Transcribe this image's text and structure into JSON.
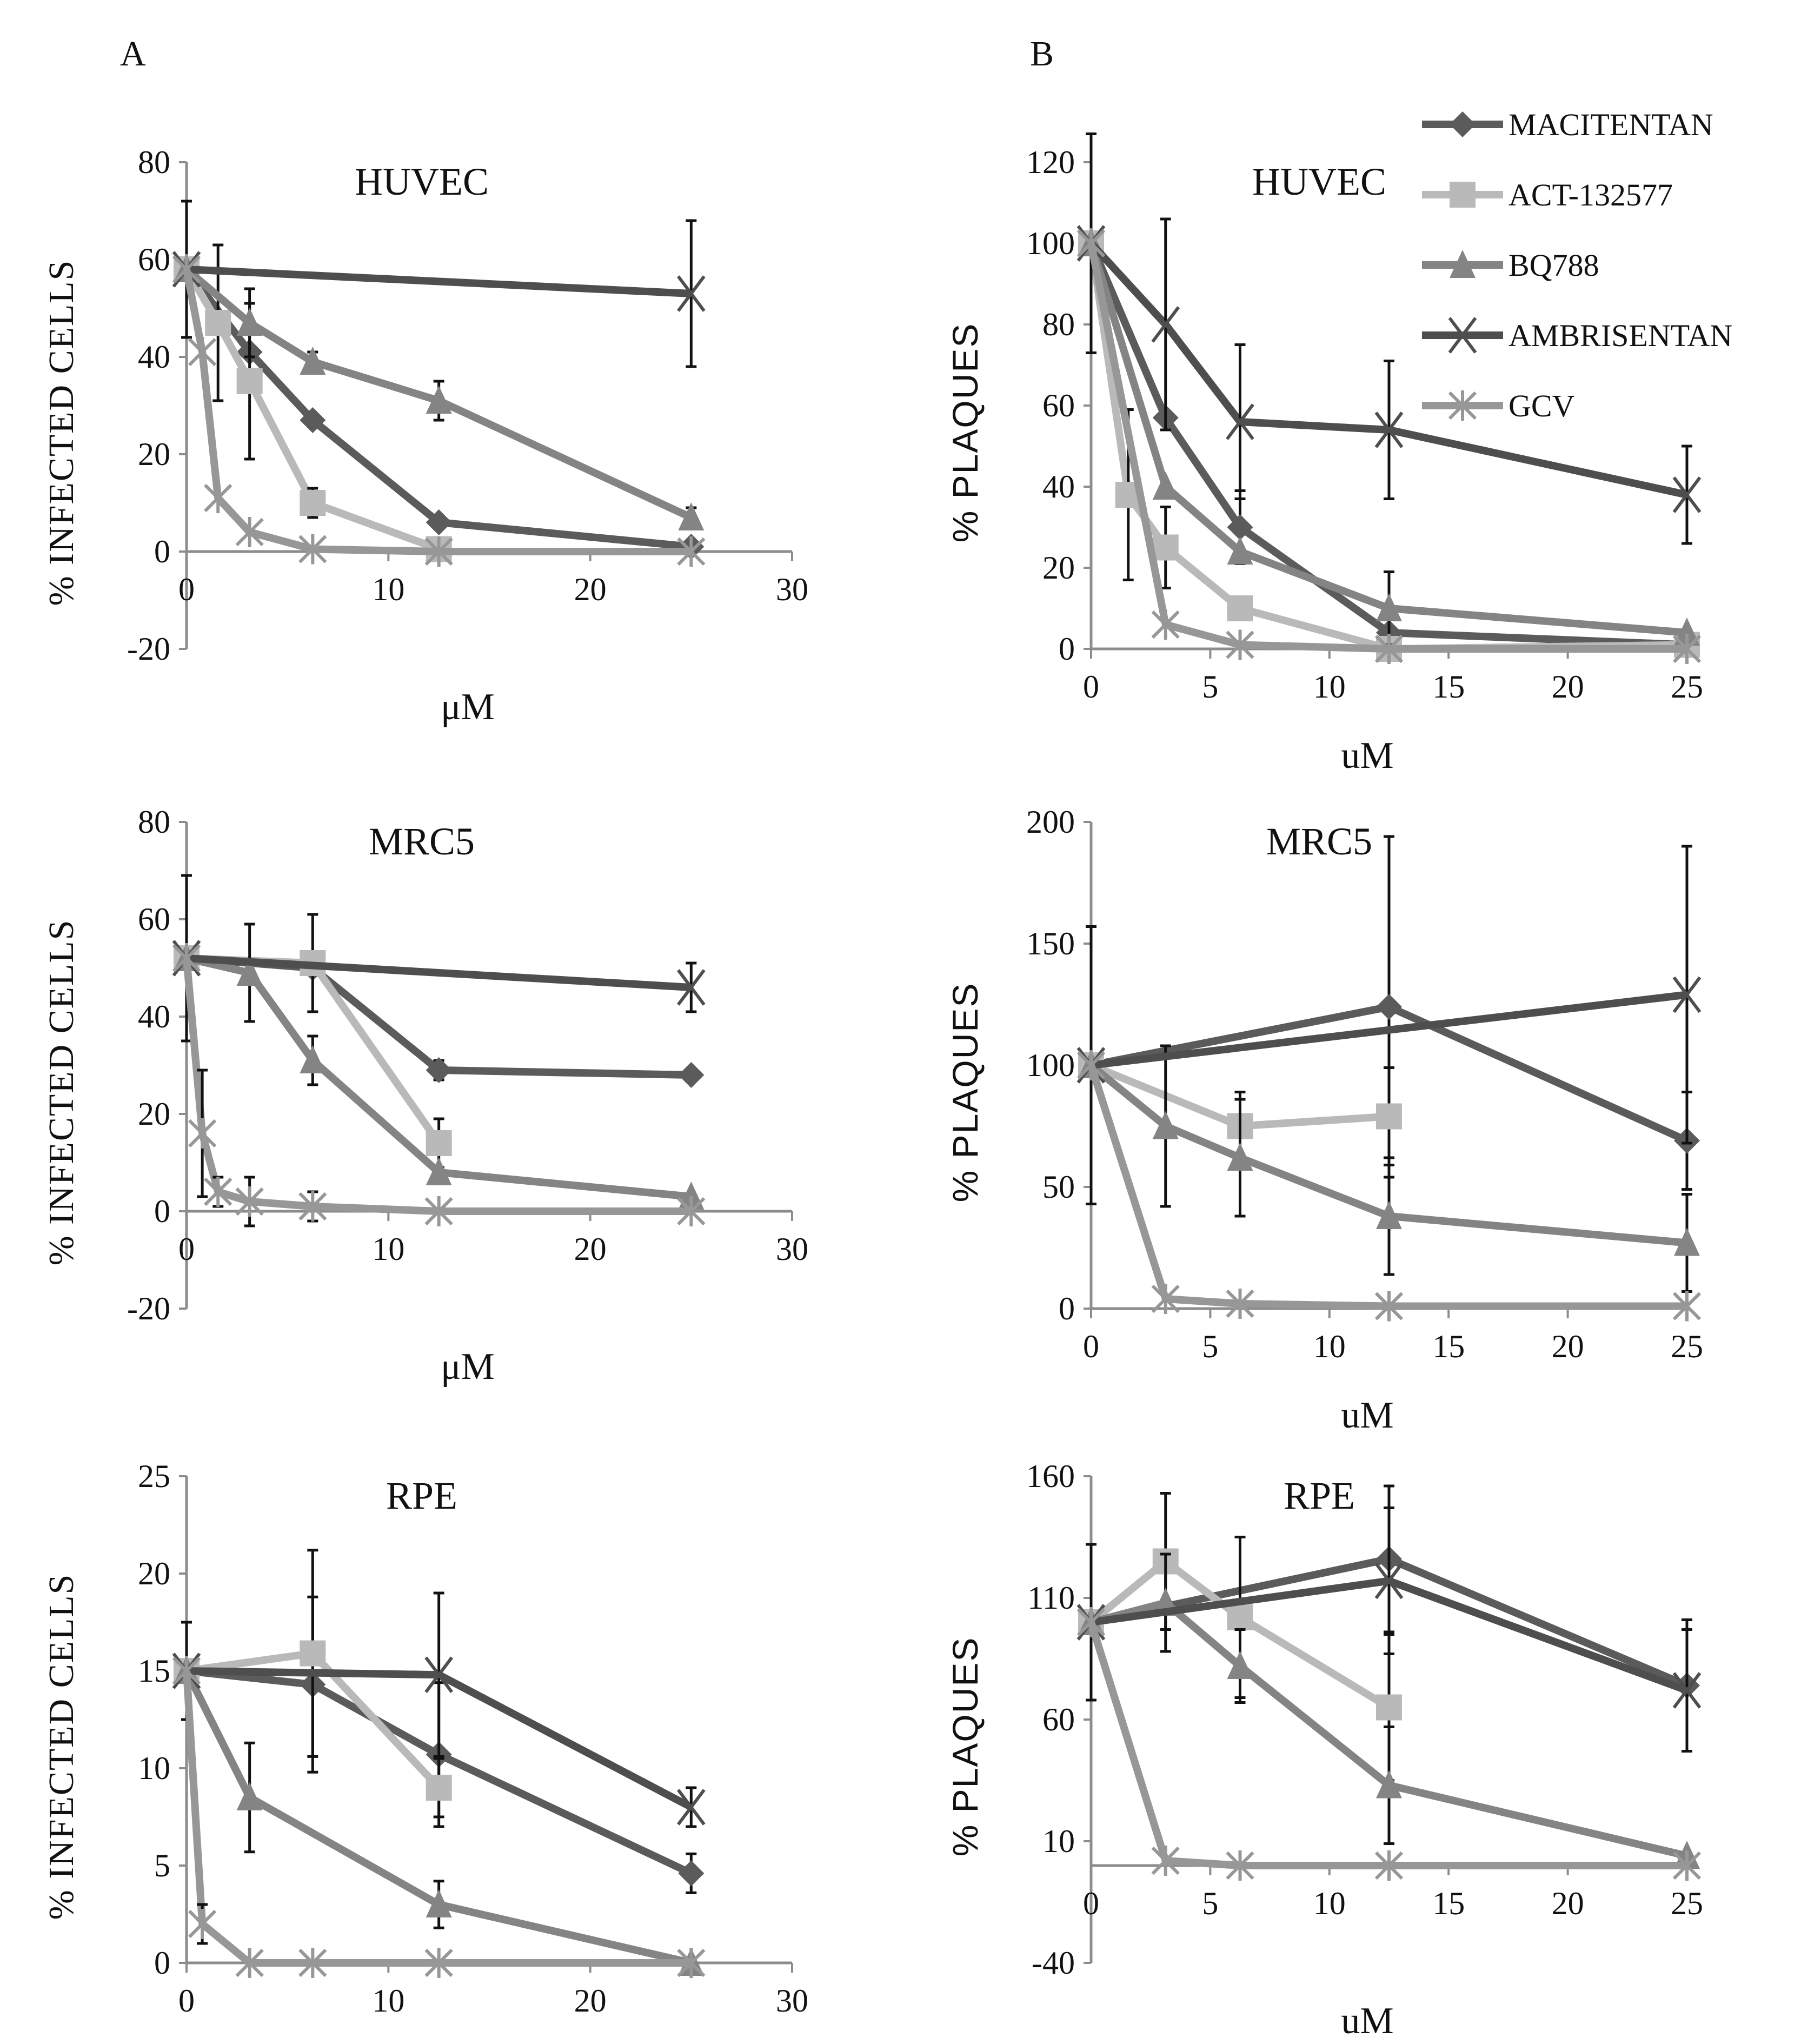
{
  "panel_letters": [
    "A",
    "B"
  ],
  "series_styles": [
    {
      "name": "MACITENTAN",
      "color": "#5b5b5b",
      "marker": "diamond"
    },
    {
      "name": "ACT-132577",
      "color": "#b9b9b9",
      "marker": "square"
    },
    {
      "name": "BQ788",
      "color": "#848484",
      "marker": "triangle"
    },
    {
      "name": "AMBRISENTAN",
      "color": "#4e4e4e",
      "marker": "x"
    },
    {
      "name": "GCV",
      "color": "#979797",
      "marker": "asterisk"
    }
  ],
  "chart_data": [
    {
      "type": "line",
      "title": "HUVEC",
      "xlabel": "μM",
      "ylabel": "% INFECTED CELLS",
      "xlim": [
        0,
        30
      ],
      "ylim": [
        -20,
        80
      ],
      "xticks": [
        0,
        10,
        20,
        30
      ],
      "yticks": [
        -20,
        0,
        20,
        40,
        60,
        80
      ],
      "legend": "none",
      "series": [
        {
          "name": "MACITENTAN",
          "points": [
            {
              "x": 0,
              "y": 58
            },
            {
              "x": 3.125,
              "y": 41
            },
            {
              "x": 6.25,
              "y": 27
            },
            {
              "x": 12.5,
              "y": 6
            },
            {
              "x": 25,
              "y": 1
            }
          ]
        },
        {
          "name": "ACT-132577",
          "points": [
            {
              "x": 0,
              "y": 58
            },
            {
              "x": 1.56,
              "y": 47,
              "err": 16
            },
            {
              "x": 3.125,
              "y": 35,
              "err": 16
            },
            {
              "x": 6.25,
              "y": 10,
              "err": 3
            },
            {
              "x": 12.5,
              "y": 0.5
            }
          ]
        },
        {
          "name": "BQ788",
          "points": [
            {
              "x": 0,
              "y": 58
            },
            {
              "x": 3.125,
              "y": 47,
              "err": 7
            },
            {
              "x": 6.25,
              "y": 39,
              "err": 2
            },
            {
              "x": 12.5,
              "y": 31,
              "err": 4
            },
            {
              "x": 25,
              "y": 7,
              "err": 2
            }
          ]
        },
        {
          "name": "AMBRISENTAN",
          "points": [
            {
              "x": 0,
              "y": 58,
              "err": 14
            },
            {
              "x": 25,
              "y": 53,
              "err": 15
            }
          ]
        },
        {
          "name": "GCV",
          "points": [
            {
              "x": 0,
              "y": 58
            },
            {
              "x": 0.78,
              "y": 41
            },
            {
              "x": 1.56,
              "y": 11
            },
            {
              "x": 3.125,
              "y": 4
            },
            {
              "x": 6.25,
              "y": 0.5
            },
            {
              "x": 12.5,
              "y": 0
            },
            {
              "x": 25,
              "y": 0
            }
          ]
        }
      ]
    },
    {
      "type": "line",
      "title": "HUVEC",
      "xlabel": "uM",
      "ylabel": "% PLAQUES",
      "xlim": [
        0,
        25
      ],
      "ylim": [
        0,
        120
      ],
      "xticks": [
        0,
        5,
        10,
        15,
        20,
        25
      ],
      "yticks": [
        0,
        20,
        40,
        60,
        80,
        100,
        120
      ],
      "legend": "top-right",
      "series": [
        {
          "name": "MACITENTAN",
          "points": [
            {
              "x": 0,
              "y": 100
            },
            {
              "x": 3.125,
              "y": 57
            },
            {
              "x": 6.25,
              "y": 30,
              "err": 9
            },
            {
              "x": 12.5,
              "y": 4
            },
            {
              "x": 25,
              "y": 1
            }
          ]
        },
        {
          "name": "ACT-132577",
          "points": [
            {
              "x": 0,
              "y": 100
            },
            {
              "x": 1.56,
              "y": 38,
              "err": 21
            },
            {
              "x": 3.125,
              "y": 25,
              "err": 10
            },
            {
              "x": 6.25,
              "y": 10
            },
            {
              "x": 12.5,
              "y": 0
            },
            {
              "x": 25,
              "y": 1
            }
          ]
        },
        {
          "name": "BQ788",
          "points": [
            {
              "x": 0,
              "y": 100
            },
            {
              "x": 3.125,
              "y": 40
            },
            {
              "x": 6.25,
              "y": 24
            },
            {
              "x": 12.5,
              "y": 10,
              "err": 9
            },
            {
              "x": 25,
              "y": 4
            }
          ]
        },
        {
          "name": "AMBRISENTAN",
          "points": [
            {
              "x": 0,
              "y": 100,
              "err": 27
            },
            {
              "x": 3.125,
              "y": 80,
              "err": 26
            },
            {
              "x": 6.25,
              "y": 56,
              "err": 19
            },
            {
              "x": 12.5,
              "y": 54,
              "err": 17
            },
            {
              "x": 25,
              "y": 38,
              "err": 12
            }
          ]
        },
        {
          "name": "GCV",
          "points": [
            {
              "x": 0,
              "y": 100
            },
            {
              "x": 3.125,
              "y": 6
            },
            {
              "x": 6.25,
              "y": 1
            },
            {
              "x": 12.5,
              "y": 0
            },
            {
              "x": 25,
              "y": 0
            }
          ]
        }
      ]
    },
    {
      "type": "line",
      "title": "MRC5",
      "xlabel": "μM",
      "ylabel": "% INFECTED CELLS",
      "xlim": [
        0,
        30
      ],
      "ylim": [
        -20,
        80
      ],
      "xticks": [
        0,
        10,
        20,
        30
      ],
      "yticks": [
        -20,
        0,
        20,
        40,
        60,
        80
      ],
      "legend": "none",
      "series": [
        {
          "name": "MACITENTAN",
          "points": [
            {
              "x": 0,
              "y": 52
            },
            {
              "x": 6.25,
              "y": 50
            },
            {
              "x": 12.5,
              "y": 29,
              "err": 2
            },
            {
              "x": 25,
              "y": 28
            }
          ]
        },
        {
          "name": "ACT-132577",
          "points": [
            {
              "x": 0,
              "y": 52
            },
            {
              "x": 6.25,
              "y": 51,
              "err": 10
            },
            {
              "x": 12.5,
              "y": 14,
              "err": 5
            }
          ]
        },
        {
          "name": "BQ788",
          "points": [
            {
              "x": 0,
              "y": 52
            },
            {
              "x": 3.125,
              "y": 49,
              "err": 10
            },
            {
              "x": 6.25,
              "y": 31,
              "err": 5
            },
            {
              "x": 12.5,
              "y": 8
            },
            {
              "x": 25,
              "y": 3
            }
          ]
        },
        {
          "name": "AMBRISENTAN",
          "points": [
            {
              "x": 0,
              "y": 52,
              "err": 17
            },
            {
              "x": 25,
              "y": 46,
              "err": 5
            }
          ]
        },
        {
          "name": "GCV",
          "points": [
            {
              "x": 0,
              "y": 52
            },
            {
              "x": 0.78,
              "y": 16,
              "err": 13
            },
            {
              "x": 1.56,
              "y": 4,
              "err": 3
            },
            {
              "x": 3.125,
              "y": 2,
              "err": 5
            },
            {
              "x": 6.25,
              "y": 1,
              "err": 3
            },
            {
              "x": 12.5,
              "y": 0
            },
            {
              "x": 25,
              "y": 0
            }
          ]
        }
      ]
    },
    {
      "type": "line",
      "title": "MRC5",
      "xlabel": "uM",
      "ylabel": "% PLAQUES",
      "xlim": [
        0,
        25
      ],
      "ylim": [
        0,
        200
      ],
      "xticks": [
        0,
        5,
        10,
        15,
        20,
        25
      ],
      "yticks": [
        0,
        50,
        100,
        150,
        200
      ],
      "legend": "none",
      "series": [
        {
          "name": "MACITENTAN",
          "points": [
            {
              "x": 0,
              "y": 100
            },
            {
              "x": 12.5,
              "y": 124,
              "err": 70
            },
            {
              "x": 25,
              "y": 69,
              "err": 20
            }
          ]
        },
        {
          "name": "ACT-132577",
          "points": [
            {
              "x": 0,
              "y": 100
            },
            {
              "x": 6.25,
              "y": 75,
              "err": 14
            },
            {
              "x": 12.5,
              "y": 79,
              "err": 20
            }
          ]
        },
        {
          "name": "BQ788",
          "points": [
            {
              "x": 0,
              "y": 100
            },
            {
              "x": 3.125,
              "y": 75,
              "err": 33
            },
            {
              "x": 6.25,
              "y": 62,
              "err": 24
            },
            {
              "x": 12.5,
              "y": 38,
              "err": 24
            },
            {
              "x": 25,
              "y": 27,
              "err": 20
            }
          ]
        },
        {
          "name": "AMBRISENTAN",
          "points": [
            {
              "x": 0,
              "y": 100,
              "err": 57
            },
            {
              "x": 25,
              "y": 129,
              "err": 61
            }
          ]
        },
        {
          "name": "GCV",
          "points": [
            {
              "x": 0,
              "y": 100
            },
            {
              "x": 3.125,
              "y": 4
            },
            {
              "x": 6.25,
              "y": 2
            },
            {
              "x": 12.5,
              "y": 1
            },
            {
              "x": 25,
              "y": 1
            }
          ]
        }
      ]
    },
    {
      "type": "line",
      "title": "RPE",
      "xlabel": "μM",
      "ylabel": "% INFECTED CELLS",
      "xlim": [
        0,
        30
      ],
      "ylim": [
        0,
        25
      ],
      "xticks": [
        0,
        10,
        20,
        30
      ],
      "yticks": [
        0,
        5,
        10,
        15,
        20,
        25
      ],
      "legend": "none",
      "series": [
        {
          "name": "MACITENTAN",
          "points": [
            {
              "x": 0,
              "y": 15
            },
            {
              "x": 6.25,
              "y": 14.3,
              "err": 4.5
            },
            {
              "x": 12.5,
              "y": 10.7,
              "err": 3.7
            },
            {
              "x": 25,
              "y": 4.6,
              "err": 1
            }
          ]
        },
        {
          "name": "ACT-132577",
          "points": [
            {
              "x": 0,
              "y": 15,
              "err": 2.5
            },
            {
              "x": 6.25,
              "y": 15.9,
              "err": 5.3
            },
            {
              "x": 12.5,
              "y": 9,
              "err": 1.5
            }
          ]
        },
        {
          "name": "BQ788",
          "points": [
            {
              "x": 0,
              "y": 15
            },
            {
              "x": 3.125,
              "y": 8.5,
              "err": 2.8
            },
            {
              "x": 12.5,
              "y": 3,
              "err": 1.2
            },
            {
              "x": 25,
              "y": 0
            }
          ]
        },
        {
          "name": "AMBRISENTAN",
          "points": [
            {
              "x": 0,
              "y": 15
            },
            {
              "x": 12.5,
              "y": 14.8,
              "err": 4.2
            },
            {
              "x": 25,
              "y": 8,
              "err": 1
            }
          ]
        },
        {
          "name": "GCV",
          "points": [
            {
              "x": 0,
              "y": 15
            },
            {
              "x": 0.78,
              "y": 2,
              "err": 1
            },
            {
              "x": 3.125,
              "y": 0
            },
            {
              "x": 6.25,
              "y": 0
            },
            {
              "x": 12.5,
              "y": 0
            },
            {
              "x": 25,
              "y": 0
            }
          ]
        }
      ]
    },
    {
      "type": "line",
      "title": "RPE",
      "xlabel": "uM",
      "ylabel": "% PLAQUES",
      "xlim": [
        0,
        25
      ],
      "ylim": [
        -40,
        160
      ],
      "xticks": [
        0,
        5,
        10,
        15,
        20,
        25
      ],
      "yticks": [
        -40,
        10,
        60,
        110,
        160
      ],
      "legend": "none",
      "series": [
        {
          "name": "MACITENTAN",
          "points": [
            {
              "x": 0,
              "y": 100
            },
            {
              "x": 12.5,
              "y": 126,
              "err": 30
            },
            {
              "x": 25,
              "y": 74,
              "err": 27
            }
          ]
        },
        {
          "name": "ACT-132577",
          "points": [
            {
              "x": 0,
              "y": 100
            },
            {
              "x": 3.125,
              "y": 125,
              "err": 28
            },
            {
              "x": 6.25,
              "y": 102,
              "err": 33
            },
            {
              "x": 12.5,
              "y": 65,
              "err": 30
            }
          ]
        },
        {
          "name": "BQ788",
          "points": [
            {
              "x": 0,
              "y": 100
            },
            {
              "x": 3.125,
              "y": 108,
              "err": 20
            },
            {
              "x": 6.25,
              "y": 82,
              "err": 15
            },
            {
              "x": 12.5,
              "y": 33,
              "err": 24
            },
            {
              "x": 25,
              "y": 4
            }
          ]
        },
        {
          "name": "AMBRISENTAN",
          "points": [
            {
              "x": 0,
              "y": 100,
              "err": 32
            },
            {
              "x": 12.5,
              "y": 117,
              "err": 30
            },
            {
              "x": 25,
              "y": 72,
              "err": 25
            }
          ]
        },
        {
          "name": "GCV",
          "points": [
            {
              "x": 0,
              "y": 100
            },
            {
              "x": 3.125,
              "y": 2
            },
            {
              "x": 6.25,
              "y": 0
            },
            {
              "x": 12.5,
              "y": 0
            },
            {
              "x": 25,
              "y": 0
            }
          ]
        }
      ]
    }
  ]
}
